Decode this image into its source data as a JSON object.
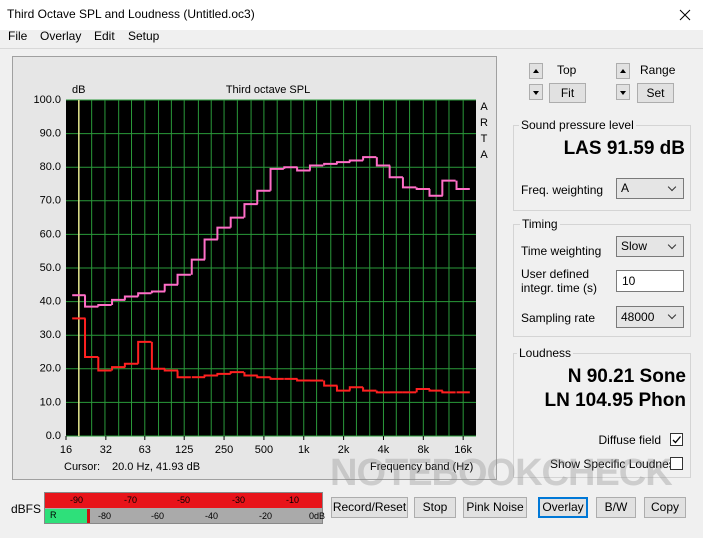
{
  "window": {
    "title": "Third Octave SPL and Loudness (Untitled.oc3)"
  },
  "menu": [
    "File",
    "Overlay",
    "Edit",
    "Setup"
  ],
  "chart_data": {
    "type": "line",
    "drawstyle": "steps-mid",
    "title": "Third octave SPL",
    "y_label": "dB",
    "x_label": "Frequency band (Hz)",
    "side_label": "ARTA",
    "cursor_label": "Cursor:",
    "cursor_value": "20.0 Hz, 41.93 dB",
    "cursor_x": 20,
    "background": "#000000",
    "grid": true,
    "grid_color": "#2a9a3a",
    "cursor_color": "#e8e890",
    "xscale": "log",
    "x": [
      20,
      25,
      31.5,
      40,
      50,
      63,
      80,
      100,
      125,
      160,
      200,
      250,
      315,
      400,
      500,
      630,
      800,
      1000,
      1250,
      1600,
      2000,
      2500,
      3150,
      4000,
      5000,
      6300,
      8000,
      10000,
      12500,
      16000
    ],
    "series": [
      {
        "color": "#ff6ec7",
        "values": [
          41.9,
          38.5,
          39,
          40.5,
          41.5,
          42.5,
          43,
          45,
          48,
          52.5,
          58.5,
          62,
          65,
          69,
          73,
          79.5,
          80,
          79,
          80.5,
          81,
          81.5,
          82,
          83,
          80.5,
          77,
          74,
          73.5,
          71.5,
          76,
          73.5
        ]
      },
      {
        "color": "#ff2020",
        "values": [
          35,
          23.5,
          19.5,
          20.5,
          21.5,
          28,
          20,
          19.5,
          17.5,
          17.5,
          18,
          18.5,
          19,
          18,
          17.5,
          17,
          17,
          16.5,
          16.5,
          15,
          13.5,
          14.5,
          13.5,
          13,
          13,
          13,
          14,
          13.5,
          13,
          13
        ]
      }
    ],
    "xlim": [
      16,
      20000
    ],
    "xticks": [
      16,
      32,
      63,
      125,
      250,
      500,
      {
        "value": 1000,
        "label": "1k"
      },
      {
        "value": 2000,
        "label": "2k"
      },
      {
        "value": 4000,
        "label": "4k"
      },
      {
        "value": 8000,
        "label": "8k"
      },
      {
        "value": 16000,
        "label": "16k"
      }
    ],
    "ylim": [
      0,
      100
    ],
    "yticks": [
      {
        "value": 0,
        "label": "0.0"
      },
      {
        "value": 10,
        "label": "10.0"
      },
      {
        "value": 20,
        "label": "20.0"
      },
      {
        "value": 30,
        "label": "30.0"
      },
      {
        "value": 40,
        "label": "40.0"
      },
      {
        "value": 50,
        "label": "50.0"
      },
      {
        "value": 60,
        "label": "60.0"
      },
      {
        "value": 70,
        "label": "70.0"
      },
      {
        "value": 80,
        "label": "80.0"
      },
      {
        "value": 90,
        "label": "90.0"
      },
      {
        "value": 100,
        "label": "100.0"
      }
    ]
  },
  "controls": {
    "top_label": "Top",
    "fit": "Fit",
    "range_label": "Range",
    "set": "Set"
  },
  "spl": {
    "group": "Sound pressure level",
    "reading": "LAS 91.59 dB",
    "weighting_label": "Freq. weighting",
    "weighting": "A"
  },
  "timing": {
    "group": "Timing",
    "time_weighting_label": "Time weighting",
    "time_weighting": "Slow",
    "integr_label": "User defined integr. time (s)",
    "integr_time": "10",
    "sampling_label": "Sampling rate",
    "sampling_rate": "48000"
  },
  "loudness": {
    "group": "Loudness",
    "n": "N 90.21 Sone",
    "ln": "LN 104.95 Phon",
    "diffuse_label": "Diffuse field",
    "specific_label": "Show Specific Loudness"
  },
  "meter": {
    "label": "dBFS",
    "channel": "R",
    "top_scale": [
      "-90",
      "-70",
      "-50",
      "-30",
      "-10"
    ],
    "bottom_scale": [
      "-80",
      "-60",
      "-40",
      "-20",
      "0dB"
    ]
  },
  "buttons": [
    "Record/Reset",
    "Stop",
    "Pink Noise",
    "Overlay",
    "B/W",
    "Copy"
  ],
  "watermark": "NOTEBOOKCHECK"
}
